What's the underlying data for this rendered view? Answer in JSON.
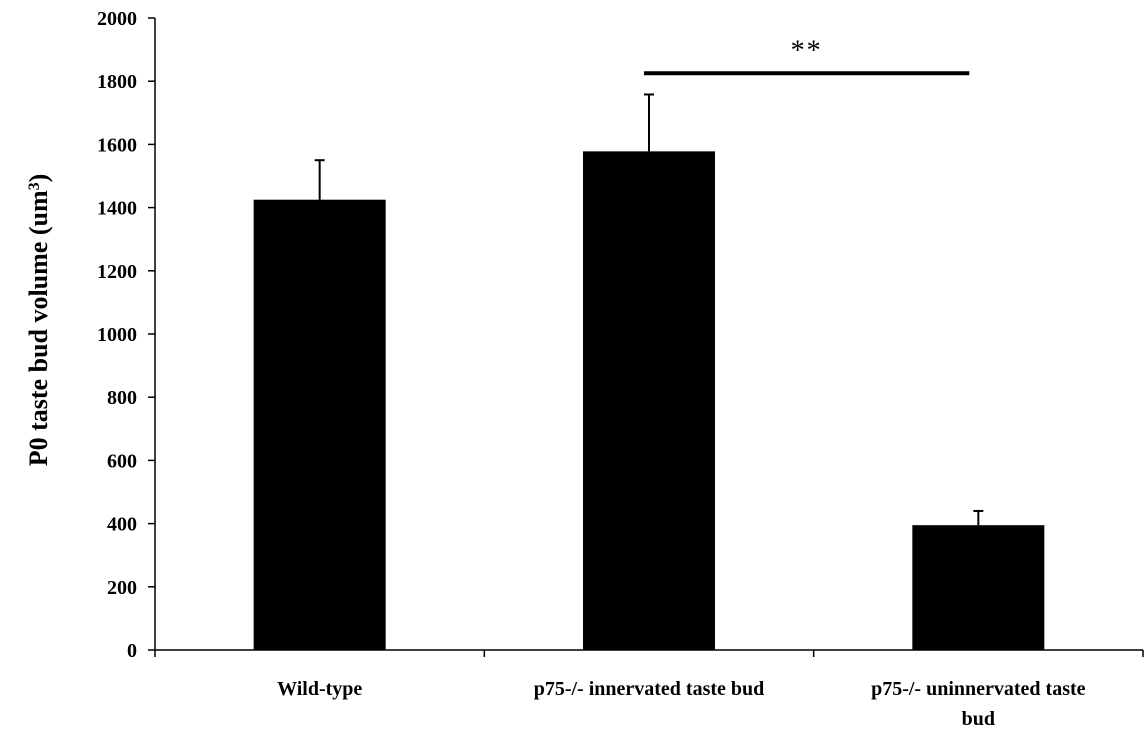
{
  "chart_data": {
    "type": "bar",
    "categories": [
      [
        "Wild-type"
      ],
      [
        "p75-/- innervated taste bud"
      ],
      [
        "p75-/- uninnervated taste",
        "bud"
      ]
    ],
    "values": [
      1425,
      1578,
      395
    ],
    "error_plus": [
      125,
      180,
      45
    ],
    "ylabel": "P0 taste bud volume (um",
    "ylabel_superscript": "3",
    "ylabel_suffix": ")",
    "ylim": [
      0,
      2000
    ],
    "yticks": [
      0,
      200,
      400,
      600,
      800,
      1000,
      1200,
      1400,
      1600,
      1800,
      2000
    ],
    "grid": false,
    "bar_color": "#000000",
    "significance": {
      "label": "**",
      "from_category": 1,
      "to_category": 2,
      "level": 1825
    }
  }
}
